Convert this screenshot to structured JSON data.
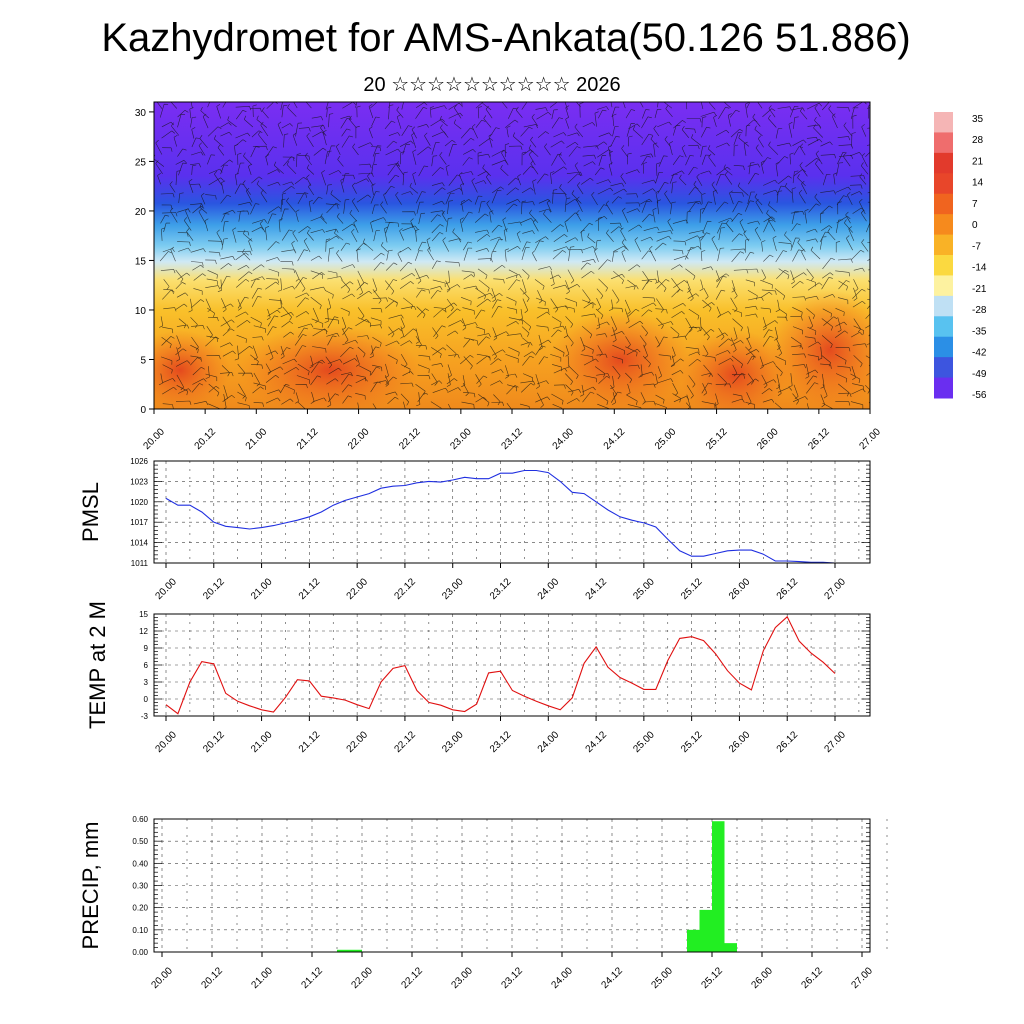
{
  "header": {
    "title": "Kazhydromet for AMS-Ankata(50.126 51.886)",
    "subtitle": "20 ☆☆☆☆☆☆☆☆☆☆ 2026"
  },
  "chart_data": [
    {
      "type": "heatmap",
      "title": "",
      "xlabel": "",
      "ylabel": "",
      "x_ticks": [
        "20.00",
        "20.12",
        "21.00",
        "21.12",
        "22.00",
        "22.12",
        "23.00",
        "23.12",
        "24.00",
        "24.12",
        "25.00",
        "25.12",
        "26.00",
        "26.12",
        "27.00"
      ],
      "y_ticks": [
        0,
        5,
        10,
        15,
        20,
        25,
        30
      ],
      "ylim": [
        0,
        31
      ],
      "colorbar_labels": [
        "35",
        "28",
        "21",
        "14",
        "7",
        "0",
        "-7",
        "-14",
        "-21",
        "-28",
        "-35",
        "-42",
        "-49",
        "-56"
      ],
      "colorbar_colors": [
        "#f5b5b5",
        "#ef6d6d",
        "#e23a2c",
        "#e8462a",
        "#f0641f",
        "#f68a1d",
        "#f9b226",
        "#fbd940",
        "#fdf2a0",
        "#bfe0f4",
        "#58c2f0",
        "#2b8fe6",
        "#3d55df",
        "#6a2ef0"
      ],
      "note_overlay": "wind barbs"
    },
    {
      "type": "line",
      "ylabel": "PMSL",
      "ylim": [
        1011,
        1026
      ],
      "y_ticks": [
        1011,
        1014,
        1017,
        1020,
        1023,
        1026
      ],
      "x_ticks": [
        "20.00",
        "20.12",
        "21.00",
        "21.12",
        "22.00",
        "22.12",
        "23.00",
        "23.12",
        "24.00",
        "24.12",
        "25.00",
        "25.12",
        "26.00",
        "26.12",
        "27.00"
      ],
      "color": "#1f2fe0",
      "x": [
        0,
        1,
        2,
        3,
        4,
        5,
        6,
        7,
        8,
        9,
        10,
        11,
        12,
        13,
        14,
        15,
        16,
        17,
        18,
        19,
        20,
        21,
        22,
        23,
        24,
        25,
        26,
        27,
        28,
        29,
        30,
        31,
        32,
        33,
        34,
        35,
        36,
        37,
        38,
        39,
        40,
        41,
        42,
        43,
        44,
        45,
        46,
        47,
        48,
        49,
        50,
        51,
        52,
        53,
        54,
        55,
        56
      ],
      "values": [
        1020.5,
        1019.5,
        1019.5,
        1018.5,
        1017.0,
        1016.4,
        1016.2,
        1016.0,
        1016.2,
        1016.5,
        1016.9,
        1017.3,
        1017.8,
        1018.5,
        1019.5,
        1020.2,
        1020.7,
        1021.2,
        1022.0,
        1022.3,
        1022.4,
        1022.8,
        1023.0,
        1022.9,
        1023.2,
        1023.6,
        1023.4,
        1023.4,
        1024.2,
        1024.2,
        1024.6,
        1024.6,
        1024.3,
        1023.0,
        1021.4,
        1021.2,
        1020.0,
        1018.8,
        1017.8,
        1017.3,
        1016.9,
        1016.3,
        1014.5,
        1012.8,
        1012.0,
        1012.0,
        1012.4,
        1012.8,
        1012.9,
        1012.9,
        1012.3,
        1011.3,
        1011.3,
        1011.2,
        1011.1,
        1011.1,
        1011.0
      ]
    },
    {
      "type": "line",
      "ylabel": "TEMP at 2 M",
      "ylim": [
        -3,
        15
      ],
      "y_ticks": [
        -3,
        0,
        3,
        6,
        9,
        12,
        15
      ],
      "x_ticks": [
        "20.00",
        "20.12",
        "21.00",
        "21.12",
        "22.00",
        "22.12",
        "23.00",
        "23.12",
        "24.00",
        "24.12",
        "25.00",
        "25.12",
        "26.00",
        "26.12",
        "27.00"
      ],
      "color": "#e01010",
      "x": [
        0,
        1,
        2,
        3,
        4,
        5,
        6,
        7,
        8,
        9,
        10,
        11,
        12,
        13,
        14,
        15,
        16,
        17,
        18,
        19,
        20,
        21,
        22,
        23,
        24,
        25,
        26,
        27,
        28,
        29,
        30,
        31,
        32,
        33,
        34,
        35,
        36,
        37,
        38,
        39,
        40,
        41,
        42,
        43,
        44,
        45,
        46,
        47,
        48,
        49,
        50,
        51,
        52,
        53,
        54,
        55,
        56
      ],
      "values": [
        -1.0,
        -2.6,
        3.0,
        6.6,
        6.2,
        1.0,
        -0.4,
        -1.2,
        -1.9,
        -2.3,
        0.3,
        3.4,
        3.2,
        0.5,
        0.2,
        -0.2,
        -1.0,
        -1.7,
        3.0,
        5.4,
        5.9,
        1.5,
        -0.6,
        -1.1,
        -1.9,
        -2.2,
        -0.9,
        4.6,
        4.9,
        1.5,
        0.5,
        -0.4,
        -1.2,
        -1.9,
        0.2,
        6.3,
        9.2,
        5.6,
        3.8,
        2.8,
        1.7,
        1.7,
        6.8,
        10.7,
        11.0,
        10.3,
        8.0,
        5.0,
        2.8,
        1.6,
        8.5,
        12.6,
        14.5,
        10.2,
        8.1,
        6.5,
        4.5
      ]
    },
    {
      "type": "bar",
      "ylabel": "PRECIP, mm",
      "ylim": [
        0,
        0.6
      ],
      "y_ticks": [
        "0.00",
        "0.10",
        "0.20",
        "0.30",
        "0.40",
        "0.50",
        "0.60"
      ],
      "x_ticks": [
        "20.00",
        "20.12",
        "21.00",
        "21.12",
        "22.00",
        "22.12",
        "23.00",
        "23.12",
        "24.00",
        "24.12",
        "25.00",
        "25.12",
        "26.00",
        "26.12",
        "27.00"
      ],
      "color": "#22ee22",
      "x": [
        14.5,
        15.5,
        42.5,
        43.5,
        44.5,
        45.5
      ],
      "values": [
        0.01,
        0.01,
        0.1,
        0.19,
        0.59,
        0.04
      ]
    }
  ]
}
